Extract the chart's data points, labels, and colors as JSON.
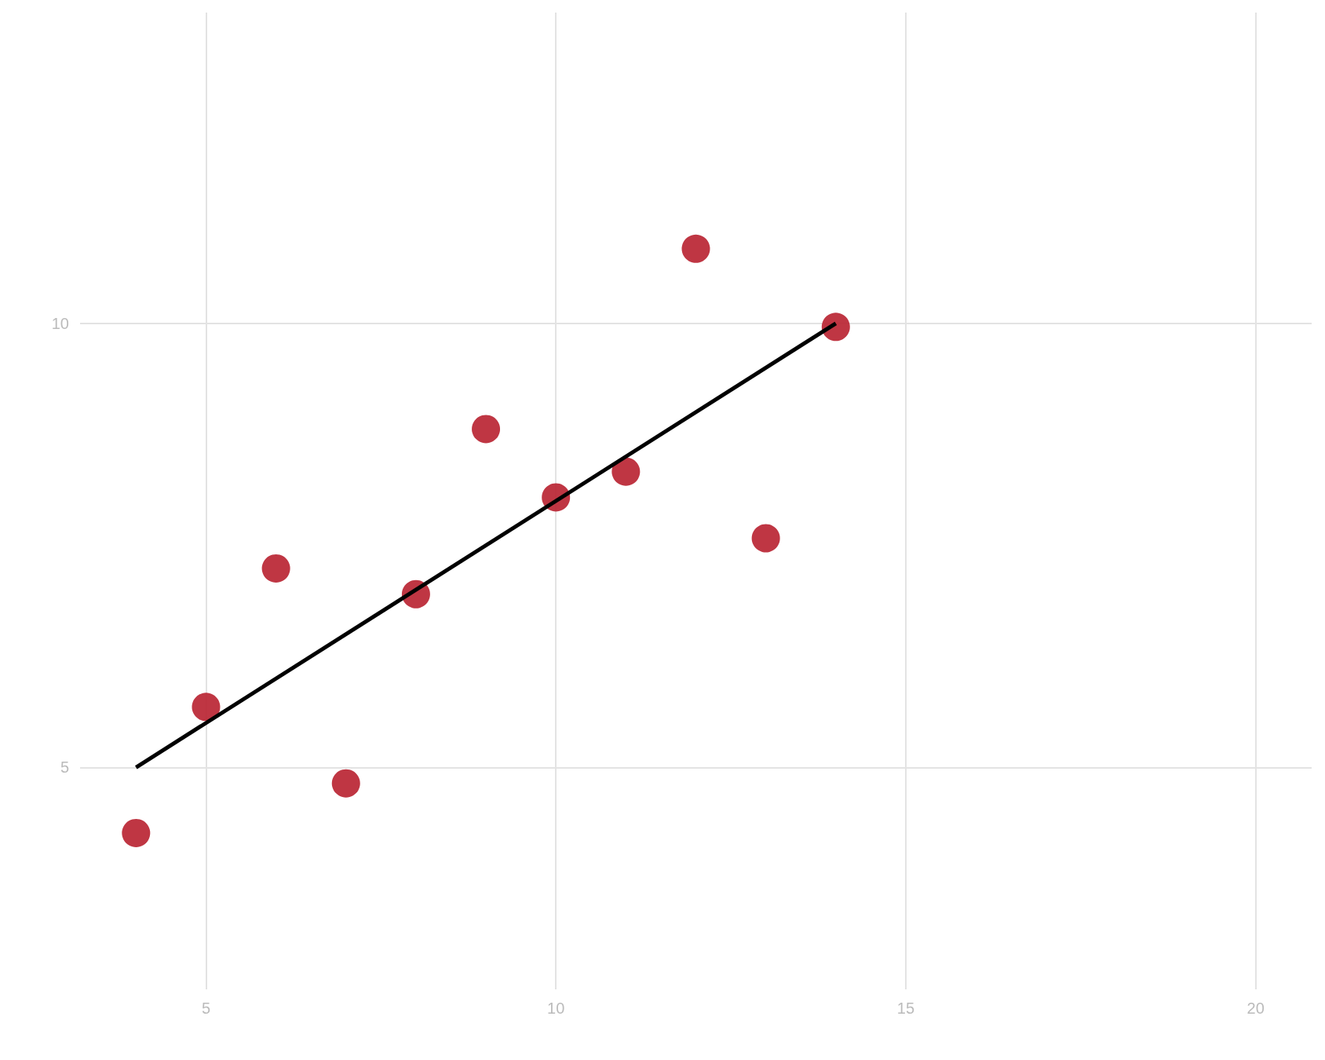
{
  "chart_data": {
    "type": "scatter",
    "xlim": [
      3.2,
      20.8
    ],
    "ylim": [
      2.5,
      13.5
    ],
    "xticks": [
      5,
      10,
      15,
      20
    ],
    "yticks": [
      5,
      10
    ],
    "grid": true,
    "marker": "circle",
    "series": [
      {
        "color": "#b8202f",
        "x": [
          10,
          8,
          13,
          9,
          11,
          14,
          6,
          4,
          12,
          7,
          5
        ],
        "values": [
          8.04,
          6.95,
          7.58,
          8.81,
          8.33,
          9.96,
          7.24,
          4.26,
          10.84,
          4.82,
          5.68
        ]
      },
      {
        "type": "line",
        "color": "#000000",
        "x": [
          4,
          14
        ],
        "values": [
          5,
          10
        ],
        "marker": "none",
        "line_style": "solid"
      }
    ]
  }
}
